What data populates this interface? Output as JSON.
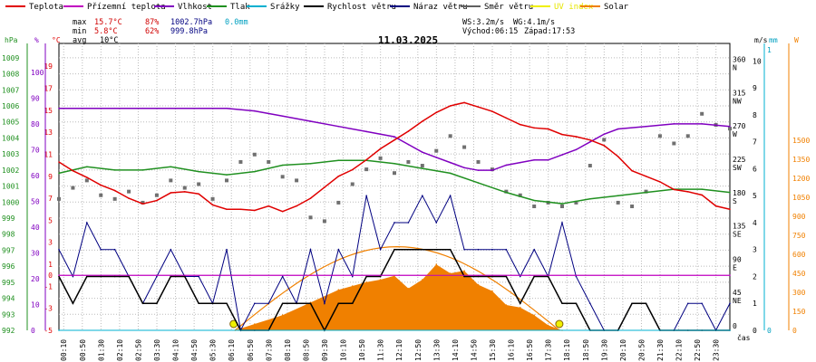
{
  "legend": [
    {
      "label": "Teplota",
      "color": "#e00000",
      "x": 6
    },
    {
      "label": "Přízemní teplota",
      "color": "#c000c0",
      "x": 70
    },
    {
      "label": "Vlhkost",
      "color": "#8000c0",
      "x": 170
    },
    {
      "label": "Tlak",
      "color": "#209020",
      "x": 228
    },
    {
      "label": "Srážky",
      "color": "#00b0d0",
      "x": 272
    },
    {
      "label": "Rychlost větru",
      "color": "#000000",
      "x": 335
    },
    {
      "label": "Náraz větru",
      "color": "#000080",
      "x": 430
    },
    {
      "label": "Směr větru",
      "color": "#606060",
      "x": 508
    },
    {
      "label": "UV index",
      "color": "#f0f000",
      "x": 585
    },
    {
      "label": "Solar",
      "color": "#f08000",
      "x": 640
    }
  ],
  "stats": {
    "max_label": "max",
    "max_temp": "15.7°C",
    "max_hum": "87%",
    "max_press": "1002.7hPa",
    "max_rain": "0.0mm",
    "min_label": "min",
    "min_temp": "5.8°C",
    "min_hum": "62%",
    "min_press": "999.8hPa",
    "avg_label": "avg",
    "avg_temp": "10°C"
  },
  "wind_info": {
    "ws": "WS:3.2m/s",
    "wg": "WG:4.1m/s",
    "sunrise": "Východ:06:15",
    "sunset": "Západ:17:53"
  },
  "date_title": "11.03.2025",
  "chart_data": {
    "type": "line",
    "title": "11.03.2025",
    "x_unit": "čas",
    "x_ticks": [
      "00:10",
      "00:50",
      "01:30",
      "02:10",
      "02:50",
      "03:30",
      "04:10",
      "04:50",
      "05:30",
      "06:10",
      "06:50",
      "07:30",
      "08:10",
      "08:50",
      "09:30",
      "10:10",
      "10:50",
      "11:30",
      "12:10",
      "12:50",
      "13:30",
      "14:10",
      "14:50",
      "15:30",
      "16:10",
      "16:50",
      "17:30",
      "18:10",
      "18:50",
      "19:30",
      "20:10",
      "20:50",
      "21:30",
      "22:10",
      "22:50",
      "23:30"
    ],
    "axes_left": {
      "hPa": {
        "label": "hPa",
        "ticks": [
          992,
          993,
          994,
          995,
          996,
          997,
          998,
          999,
          1000,
          1001,
          1002,
          1003,
          1004,
          1005,
          1006,
          1007,
          1008,
          1009
        ],
        "color": "#209020"
      },
      "percent": {
        "label": "%",
        "ticks": [
          0,
          10,
          20,
          30,
          40,
          50,
          60,
          70,
          80,
          90,
          100
        ],
        "color": "#8000c0"
      },
      "celsius": {
        "label": "°C",
        "ticks": [
          -5,
          -3,
          -1,
          0,
          1,
          3,
          5,
          7,
          9,
          11,
          13,
          15,
          17,
          19
        ],
        "color": "#e00000"
      }
    },
    "axes_right": {
      "direction": {
        "ticks": [
          [
            "0",
            ""
          ],
          [
            "45",
            "NE"
          ],
          [
            "90",
            "E"
          ],
          [
            "135",
            "SE"
          ],
          [
            "180",
            "S"
          ],
          [
            "225",
            "SW"
          ],
          [
            "270",
            "W"
          ],
          [
            "315",
            "NW"
          ],
          [
            "360",
            "N"
          ]
        ]
      },
      "ms": {
        "label": "m/s",
        "ticks": [
          0,
          1,
          2,
          3,
          4,
          5,
          6,
          7,
          8,
          9,
          10
        ]
      },
      "mm": {
        "label": "mm",
        "ticks": [
          0,
          1
        ]
      },
      "w": {
        "label": "W",
        "ticks": [
          0,
          150,
          300,
          450,
          600,
          750,
          900,
          1050,
          1200,
          1350,
          1500
        ]
      }
    },
    "series": [
      {
        "name": "Teplota",
        "unit": "°C",
        "color": "#e00000",
        "x": [
          0,
          0.5,
          1,
          1.5,
          2,
          2.5,
          3,
          3.5,
          4,
          4.5,
          5,
          5.5,
          6,
          6.5,
          7,
          7.5,
          8,
          8.5,
          9,
          9.5,
          10,
          10.5,
          11,
          11.5,
          12,
          12.5,
          13,
          13.5,
          14,
          14.5,
          15,
          15.5,
          16,
          16.5,
          17,
          17.5,
          18,
          18.5,
          19,
          19.5,
          20,
          20.5,
          21,
          21.5,
          22,
          22.5,
          23,
          23.5,
          24
        ],
        "values": [
          10.3,
          9.5,
          8.9,
          8.2,
          7.7,
          7.0,
          6.5,
          6.8,
          7.5,
          7.6,
          7.4,
          6.4,
          6.0,
          6.0,
          5.9,
          6.3,
          5.8,
          6.3,
          7.0,
          8.0,
          9.0,
          9.6,
          10.5,
          11.5,
          12.3,
          13.1,
          14.0,
          14.8,
          15.4,
          15.7,
          15.3,
          14.9,
          14.3,
          13.7,
          13.4,
          13.3,
          12.8,
          12.6,
          12.3,
          11.8,
          10.8,
          9.5,
          9.0,
          8.5,
          7.8,
          7.6,
          7.3,
          6.3,
          6.0
        ]
      },
      {
        "name": "Přízemní teplota",
        "unit": "°C",
        "color": "#c000c0",
        "x": [
          0,
          24
        ],
        "values": [
          0,
          0
        ]
      },
      {
        "name": "Vlhkost",
        "unit": "%",
        "color": "#8000c0",
        "x": [
          0,
          1,
          2,
          3,
          4,
          5,
          6,
          7,
          8,
          9,
          10,
          11,
          12,
          12.5,
          13,
          13.5,
          14,
          14.5,
          15,
          15.5,
          16,
          16.5,
          17,
          17.5,
          18,
          18.5,
          19,
          19.5,
          20,
          21,
          22,
          23,
          24
        ],
        "values": [
          86,
          86,
          86,
          86,
          86,
          86,
          86,
          85,
          83,
          81,
          79,
          77,
          75,
          72,
          69,
          67,
          65,
          63,
          62,
          62,
          64,
          65,
          66,
          66,
          68,
          70,
          73,
          76,
          78,
          79,
          80,
          80,
          79
        ]
      },
      {
        "name": "Tlak",
        "unit": "hPa",
        "color": "#209020",
        "x": [
          0,
          1,
          2,
          3,
          4,
          5,
          6,
          7,
          8,
          9,
          10,
          11,
          12,
          13,
          14,
          15,
          16,
          17,
          18,
          19,
          20,
          21,
          22,
          23,
          24
        ],
        "values": [
          1001.8,
          1002.2,
          1002.0,
          1002.0,
          1002.2,
          1001.9,
          1001.7,
          1001.9,
          1002.3,
          1002.4,
          1002.6,
          1002.6,
          1002.4,
          1002.1,
          1001.8,
          1001.2,
          1000.6,
          1000.1,
          999.9,
          1000.2,
          1000.4,
          1000.6,
          1000.8,
          1000.8,
          1000.6
        ]
      },
      {
        "name": "Srážky",
        "unit": "mm",
        "color": "#00b0d0",
        "x": [
          0,
          24
        ],
        "values": [
          0,
          0
        ]
      },
      {
        "name": "Solar",
        "unit": "W",
        "color": "#f08000",
        "x": [
          6.3,
          7,
          8,
          9,
          10,
          10.5,
          11,
          11.5,
          12,
          12.5,
          13,
          13.5,
          14,
          14.5,
          15,
          15.5,
          16,
          16.5,
          17,
          17.5,
          18
        ],
        "values": [
          0,
          50,
          120,
          220,
          320,
          350,
          380,
          400,
          430,
          330,
          400,
          520,
          450,
          470,
          360,
          310,
          200,
          180,
          120,
          40,
          0
        ]
      },
      {
        "name": "Rychlost větru",
        "unit": "m/s",
        "color": "#000000",
        "x": [
          0,
          0.5,
          1,
          1.5,
          2,
          2.5,
          3,
          3.5,
          4,
          4.5,
          5,
          5.5,
          6,
          6.5,
          7,
          7.5,
          8,
          8.5,
          9,
          9.5,
          10,
          10.5,
          11,
          11.5,
          12,
          12.5,
          13,
          13.5,
          14,
          14.5,
          15,
          15.5,
          16,
          16.5,
          17,
          17.5,
          18,
          18.5,
          19,
          19.5,
          20,
          20.5,
          21,
          21.5,
          22,
          22.5,
          23,
          23.5,
          24
        ],
        "values": [
          2,
          1,
          2,
          2,
          2,
          2,
          1,
          1,
          2,
          2,
          1,
          1,
          1,
          0,
          0,
          0,
          1,
          1,
          1,
          0,
          1,
          1,
          2,
          2,
          3,
          3,
          3,
          3,
          3,
          2,
          2,
          2,
          2,
          1,
          2,
          2,
          1,
          1,
          0,
          0,
          0,
          1,
          1,
          0,
          0,
          0,
          0,
          0,
          0
        ]
      },
      {
        "name": "Náraz větru",
        "unit": "m/s",
        "color": "#000080",
        "x": [
          0,
          0.5,
          1,
          1.5,
          2,
          2.5,
          3,
          3.5,
          4,
          4.5,
          5,
          5.5,
          6,
          6.5,
          7,
          7.5,
          8,
          8.5,
          9,
          9.5,
          10,
          10.5,
          11,
          11.5,
          12,
          12.5,
          13,
          13.5,
          14,
          14.5,
          15,
          15.5,
          16,
          16.5,
          17,
          17.5,
          18,
          18.5,
          19,
          19.5,
          20,
          20.5,
          21,
          21.5,
          22,
          22.5,
          23,
          23.5,
          24
        ],
        "values": [
          3,
          2,
          4,
          3,
          3,
          2,
          1,
          2,
          3,
          2,
          2,
          1,
          3,
          0,
          1,
          1,
          2,
          1,
          3,
          1,
          3,
          2,
          5,
          3,
          4,
          4,
          5,
          4,
          5,
          3,
          3,
          3,
          3,
          2,
          3,
          2,
          4,
          2,
          1,
          0,
          0,
          1,
          1,
          0,
          0,
          1,
          1,
          0,
          1
        ]
      },
      {
        "name": "Směr větru",
        "unit": "°",
        "color": "#606060",
        "x": [
          0,
          0.5,
          1,
          1.5,
          2,
          2.5,
          3,
          3.5,
          4,
          4.5,
          5,
          5.5,
          6,
          6.5,
          7,
          7.5,
          8,
          8.5,
          9,
          9.5,
          10,
          10.5,
          11,
          11.5,
          12,
          12.5,
          13,
          13.5,
          14,
          14.5,
          15,
          15.5,
          16,
          16.5,
          17,
          17.5,
          18,
          18.5,
          19,
          19.5,
          20,
          20.5,
          21,
          21.5,
          22,
          22.5,
          23,
          23.5,
          24
        ],
        "values": [
          175,
          190,
          200,
          180,
          175,
          185,
          170,
          180,
          200,
          190,
          195,
          175,
          200,
          225,
          235,
          225,
          205,
          200,
          150,
          145,
          170,
          195,
          215,
          230,
          210,
          225,
          220,
          240,
          260,
          245,
          225,
          215,
          185,
          180,
          165,
          170,
          165,
          170,
          220,
          255,
          170,
          165,
          185,
          260,
          250,
          260,
          290,
          275,
          270
        ]
      }
    ]
  }
}
